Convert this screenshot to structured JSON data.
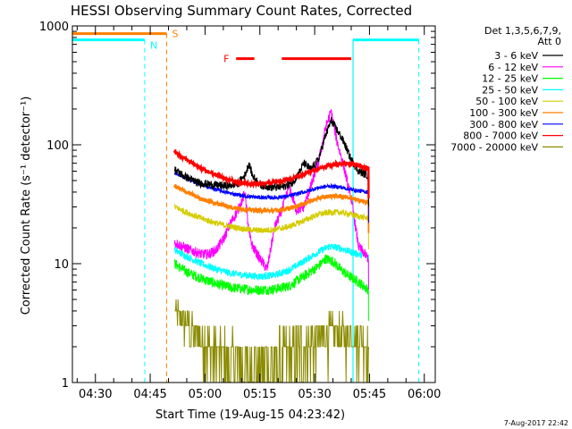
{
  "chart_data": {
    "type": "line",
    "title": "HESSI Observing Summary Count Rates, Corrected",
    "xlabel": "Start Time (19-Aug-15 04:23:42)",
    "ylabel": "Corrected Count Rate (s⁻¹ detector⁻¹)",
    "yscale": "log",
    "xlim": [
      "04:23:42",
      "06:03:00"
    ],
    "ylim": [
      1,
      1000
    ],
    "xtick_labels": [
      "04:30",
      "04:45",
      "05:00",
      "05:15",
      "05:30",
      "05:45",
      "06:00"
    ],
    "ytick_labels": [
      "1",
      "10",
      "100",
      "1000"
    ],
    "footer": "7-Aug-2017 22:42",
    "legend": {
      "header_line1": "Det 1,3,5,6,7,9,",
      "header_line2": "Att 0",
      "placement": "right, outside plot",
      "entries": [
        {
          "label": "3 - 6 keV",
          "color": "#000000"
        },
        {
          "label": "6 - 12 keV",
          "color": "#ff00ff"
        },
        {
          "label": "12 - 25 keV",
          "color": "#00ff00"
        },
        {
          "label": "25 - 50 keV",
          "color": "#00ffff"
        },
        {
          "label": "50 - 100 keV",
          "color": "#d4cc00"
        },
        {
          "label": "100 - 300 keV",
          "color": "#ff8000"
        },
        {
          "label": "300 - 800 keV",
          "color": "#0000ff"
        },
        {
          "label": "800 - 7000 keV",
          "color": "#ff0000"
        },
        {
          "label": "7000 - 20000 keV",
          "color": "#8b8b00"
        }
      ]
    },
    "markers": [
      {
        "label": "N",
        "kind": "night",
        "color": "#00ffff",
        "start": "04:23:42",
        "end": "04:43:30"
      },
      {
        "label": "N",
        "kind": "night",
        "color": "#00ffff",
        "start": "05:40:30",
        "end": "05:58:30"
      },
      {
        "label": "S",
        "kind": "saa",
        "color": "#ff8000",
        "start": "04:23:42",
        "end": "04:49:30"
      },
      {
        "label": "F",
        "kind": "flare",
        "color": "#ff0000",
        "start": "05:08:30",
        "end": "05:13:30"
      },
      {
        "label": "F",
        "kind": "flare",
        "color": "#ff0000",
        "start": "05:21:00",
        "end": "05:40:00"
      }
    ],
    "marker_level": 700,
    "data_start": "04:51:40",
    "data_end": "05:44:45",
    "series": [
      {
        "name": "3 - 6 keV",
        "color": "#000000",
        "noise": 0.08,
        "x": [
          "04:51:40",
          "04:54:00",
          "04:58:00",
          "05:02:00",
          "05:06:00",
          "05:09:00",
          "05:11:00",
          "05:12:00",
          "05:13:00",
          "05:15:00",
          "05:18:00",
          "05:21:00",
          "05:24:00",
          "05:26:00",
          "05:27:00",
          "05:29:00",
          "05:31:00",
          "05:33:00",
          "05:34:30",
          "05:36:00",
          "05:38:00",
          "05:40:00",
          "05:42:00",
          "05:44:45"
        ],
        "y": [
          62,
          55,
          48,
          46,
          45,
          47,
          56,
          70,
          55,
          46,
          44,
          44,
          48,
          60,
          70,
          62,
          75,
          120,
          160,
          135,
          105,
          75,
          60,
          55
        ]
      },
      {
        "name": "6 - 12 keV",
        "color": "#ff00ff",
        "noise": 0.1,
        "x": [
          "04:51:40",
          "04:56:00",
          "04:59:00",
          "05:01:00",
          "05:03:00",
          "05:05:00",
          "05:07:00",
          "05:09:00",
          "05:11:00",
          "05:12:00",
          "05:13:00",
          "05:15:00",
          "05:17:00",
          "05:19:00",
          "05:21:00",
          "05:23:00",
          "05:25:00",
          "05:27:00",
          "05:29:00",
          "05:31:00",
          "05:33:00",
          "05:34:30",
          "05:36:00",
          "05:38:00",
          "05:40:00",
          "05:42:00",
          "05:44:45"
        ],
        "y": [
          15,
          13,
          12,
          12,
          13,
          16,
          22,
          28,
          40,
          18,
          14,
          11,
          9,
          20,
          28,
          45,
          28,
          30,
          45,
          70,
          140,
          190,
          110,
          65,
          35,
          14,
          11
        ]
      },
      {
        "name": "12 - 25 keV",
        "color": "#00ff00",
        "noise": 0.1,
        "x": [
          "04:51:40",
          "04:55:00",
          "04:59:00",
          "05:03:00",
          "05:07:00",
          "05:11:00",
          "05:15:00",
          "05:19:00",
          "05:23:00",
          "05:27:00",
          "05:31:00",
          "05:33:00",
          "05:35:00",
          "05:37:00",
          "05:39:00",
          "05:42:00",
          "05:44:45"
        ],
        "y": [
          10,
          8.5,
          7.5,
          6.8,
          6.3,
          6.1,
          6.0,
          6.1,
          6.5,
          7.8,
          9.5,
          11,
          10.5,
          9,
          8,
          7,
          6
        ]
      },
      {
        "name": "25 - 50 keV",
        "color": "#00ffff",
        "noise": 0.07,
        "x": [
          "04:51:40",
          "04:55:00",
          "04:59:00",
          "05:03:00",
          "05:07:00",
          "05:11:00",
          "05:15:00",
          "05:19:00",
          "05:23:00",
          "05:27:00",
          "05:31:00",
          "05:34:00",
          "05:37:00",
          "05:40:00",
          "05:42:00",
          "05:44:45"
        ],
        "y": [
          13,
          11.5,
          10,
          9,
          8.3,
          8,
          7.8,
          8,
          8.8,
          10.5,
          12.5,
          14,
          13.5,
          12.5,
          12,
          11.5
        ]
      },
      {
        "name": "50 - 100 keV",
        "color": "#d4cc00",
        "noise": 0.06,
        "x": [
          "04:51:40",
          "04:55:00",
          "04:59:00",
          "05:03:00",
          "05:07:00",
          "05:11:00",
          "05:15:00",
          "05:19:00",
          "05:23:00",
          "05:27:00",
          "05:31:00",
          "05:34:00",
          "05:37:00",
          "05:40:00",
          "05:42:00",
          "05:44:45"
        ],
        "y": [
          30,
          27,
          24,
          22,
          20.5,
          19.5,
          19,
          19.3,
          20.5,
          23,
          26,
          27,
          27,
          26,
          25,
          24
        ]
      },
      {
        "name": "100 - 300 keV",
        "color": "#ff8000",
        "noise": 0.04,
        "x": [
          "04:51:40",
          "04:55:00",
          "04:59:00",
          "05:03:00",
          "05:07:00",
          "05:11:00",
          "05:15:00",
          "05:19:00",
          "05:23:00",
          "05:27:00",
          "05:31:00",
          "05:34:00",
          "05:37:00",
          "05:40:00",
          "05:42:00",
          "05:44:45"
        ],
        "y": [
          45,
          40,
          35,
          32,
          30,
          28.5,
          28,
          28,
          29,
          32,
          35.5,
          37,
          37,
          36,
          34,
          33
        ]
      },
      {
        "name": "300 - 800 keV",
        "color": "#0000ff",
        "noise": 0.04,
        "x": [
          "04:51:40",
          "04:55:00",
          "04:59:00",
          "05:03:00",
          "05:07:00",
          "05:11:00",
          "05:15:00",
          "05:19:00",
          "05:23:00",
          "05:27:00",
          "05:31:00",
          "05:34:00",
          "05:37:00",
          "05:40:00",
          "05:42:00",
          "05:44:45"
        ],
        "y": [
          58,
          52,
          46,
          42,
          39,
          37,
          36,
          36,
          37,
          40,
          43.5,
          45,
          44,
          42,
          41,
          40
        ]
      },
      {
        "name": "800 - 7000 keV",
        "color": "#ff0000",
        "noise": 0.03,
        "x": [
          "04:51:40",
          "04:54:00",
          "04:58:00",
          "05:02:00",
          "05:06:00",
          "05:10:00",
          "05:14:00",
          "05:18:00",
          "05:22:00",
          "05:26:00",
          "05:30:00",
          "05:34:00",
          "05:38:00",
          "05:41:00",
          "05:43:00",
          "05:44:45"
        ],
        "y": [
          88,
          78,
          66,
          57,
          51,
          48,
          47,
          48,
          50,
          55,
          62,
          67,
          70,
          68,
          66,
          64
        ]
      },
      {
        "name": "7000 - 20000 keV",
        "color": "#8b8b00",
        "noise": 0.3,
        "x": [
          "04:51:40",
          "04:54:00",
          "04:57:00",
          "05:00:00",
          "05:03:00",
          "05:06:00",
          "05:09:00",
          "05:12:00",
          "05:15:00",
          "05:18:00",
          "05:21:00",
          "05:24:00",
          "05:27:00",
          "05:30:00",
          "05:33:00",
          "05:36:00",
          "05:39:00",
          "05:42:00",
          "05:44:45"
        ],
        "y": [
          4,
          3.2,
          2.6,
          2.2,
          1.8,
          1.6,
          1.5,
          1.4,
          1.4,
          1.5,
          1.6,
          1.8,
          2.0,
          2.3,
          2.5,
          2.6,
          2.5,
          2.4,
          2.3
        ]
      }
    ]
  }
}
